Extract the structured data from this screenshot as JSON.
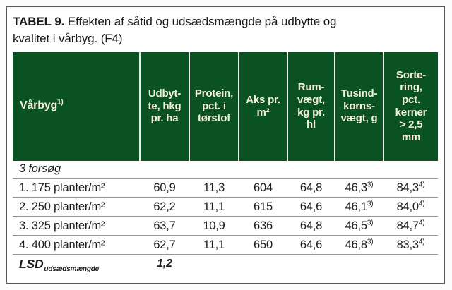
{
  "title": {
    "number": "TABEL 9.",
    "text": " Effekten af såtid og udsædsmængde på udbytte og\nkvalitet i vårbyg. (F4)"
  },
  "colors": {
    "header_bg": "#0b5222",
    "header_text": "#f4f1da",
    "card_border": "#58585a",
    "row_line": "#949494"
  },
  "table": {
    "columns": [
      {
        "label": "Vårbyg",
        "sup": "1)"
      },
      {
        "label": "Udbyt-\nte, hkg\npr. ha"
      },
      {
        "label": "Protein,\npct. i\ntørstof"
      },
      {
        "label": "Aks pr.\nm²"
      },
      {
        "label": "Rum-\nvægt,\nkg pr.\nhl"
      },
      {
        "label": "Tusind-\nkorns-\nvægt, g"
      },
      {
        "label": "Sorte-\nring,\npct.\nkerner\n> 2,5\nmm"
      }
    ],
    "rows": [
      {
        "type": "group",
        "label": "3 forsøg"
      },
      {
        "type": "data",
        "label": "1. 175 planter/m²",
        "values": [
          {
            "v": "60,9"
          },
          {
            "v": "11,3"
          },
          {
            "v": "604"
          },
          {
            "v": "64,8"
          },
          {
            "v": "46,3",
            "sup": "3)"
          },
          {
            "v": "84,3",
            "sup": "4)"
          }
        ]
      },
      {
        "type": "data",
        "label": "2. 250 planter/m²",
        "values": [
          {
            "v": "62,2"
          },
          {
            "v": "11,1"
          },
          {
            "v": "615"
          },
          {
            "v": "64,6"
          },
          {
            "v": "46,1",
            "sup": "3)"
          },
          {
            "v": "84,0",
            "sup": "4)"
          }
        ]
      },
      {
        "type": "data",
        "label": "3. 325 planter/m²",
        "values": [
          {
            "v": "63,7"
          },
          {
            "v": "10,9"
          },
          {
            "v": "636"
          },
          {
            "v": "64,8"
          },
          {
            "v": "46,5",
            "sup": "3)"
          },
          {
            "v": "84,7",
            "sup": "4)"
          }
        ]
      },
      {
        "type": "data",
        "label": "4. 400 planter/m²",
        "values": [
          {
            "v": "62,7"
          },
          {
            "v": "11,1"
          },
          {
            "v": "650"
          },
          {
            "v": "64,6"
          },
          {
            "v": "46,8",
            "sup": "3)"
          },
          {
            "v": "83,3",
            "sup": "4)"
          }
        ]
      },
      {
        "type": "lsd",
        "label": "LSD",
        "sub": "udsædsmængde",
        "values": [
          {
            "v": "1,2"
          },
          {},
          {},
          {},
          {},
          {}
        ]
      }
    ]
  }
}
